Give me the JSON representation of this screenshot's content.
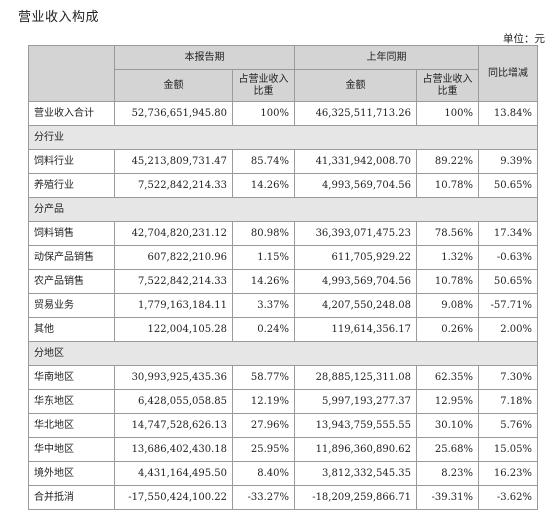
{
  "title": "营业收入构成",
  "unit": "单位：元",
  "header": {
    "current_period": "本报告期",
    "prior_period": "上年同期",
    "yoy_change": "同比增减",
    "amount": "金额",
    "share": "占营业收入比重"
  },
  "total": {
    "label": "营业收入合计",
    "current_amount": "52,736,651,945.80",
    "current_share": "100%",
    "prior_amount": "46,325,511,713.26",
    "prior_share": "100%",
    "change": "13.84%"
  },
  "sections": [
    {
      "title": "分行业",
      "rows": [
        {
          "label": "饲料行业",
          "current_amount": "45,213,809,731.47",
          "current_share": "85.74%",
          "prior_amount": "41,331,942,008.70",
          "prior_share": "89.22%",
          "change": "9.39%"
        },
        {
          "label": "养殖行业",
          "current_amount": "7,522,842,214.33",
          "current_share": "14.26%",
          "prior_amount": "4,993,569,704.56",
          "prior_share": "10.78%",
          "change": "50.65%"
        }
      ]
    },
    {
      "title": "分产品",
      "rows": [
        {
          "label": "饲料销售",
          "current_amount": "42,704,820,231.12",
          "current_share": "80.98%",
          "prior_amount": "36,393,071,475.23",
          "prior_share": "78.56%",
          "change": "17.34%"
        },
        {
          "label": "动保产品销售",
          "current_amount": "607,822,210.96",
          "current_share": "1.15%",
          "prior_amount": "611,705,929.22",
          "prior_share": "1.32%",
          "change": "-0.63%"
        },
        {
          "label": "农产品销售",
          "current_amount": "7,522,842,214.33",
          "current_share": "14.26%",
          "prior_amount": "4,993,569,704.56",
          "prior_share": "10.78%",
          "change": "50.65%"
        },
        {
          "label": "贸易业务",
          "current_amount": "1,779,163,184.11",
          "current_share": "3.37%",
          "prior_amount": "4,207,550,248.08",
          "prior_share": "9.08%",
          "change": "-57.71%"
        },
        {
          "label": "其他",
          "current_amount": "122,004,105.28",
          "current_share": "0.24%",
          "prior_amount": "119,614,356.17",
          "prior_share": "0.26%",
          "change": "2.00%"
        }
      ]
    },
    {
      "title": "分地区",
      "rows": [
        {
          "label": "华南地区",
          "current_amount": "30,993,925,435.36",
          "current_share": "58.77%",
          "prior_amount": "28,885,125,311.08",
          "prior_share": "62.35%",
          "change": "7.30%"
        },
        {
          "label": "华东地区",
          "current_amount": "6,428,055,058.85",
          "current_share": "12.19%",
          "prior_amount": "5,997,193,277.37",
          "prior_share": "12.95%",
          "change": "7.18%"
        },
        {
          "label": "华北地区",
          "current_amount": "14,747,528,626.13",
          "current_share": "27.96%",
          "prior_amount": "13,943,759,555.55",
          "prior_share": "30.10%",
          "change": "5.76%"
        },
        {
          "label": "华中地区",
          "current_amount": "13,686,402,430.18",
          "current_share": "25.95%",
          "prior_amount": "11,896,360,890.62",
          "prior_share": "25.68%",
          "change": "15.05%"
        },
        {
          "label": "境外地区",
          "current_amount": "4,431,164,495.50",
          "current_share": "8.40%",
          "prior_amount": "3,812,332,545.35",
          "prior_share": "8.23%",
          "change": "16.23%"
        },
        {
          "label": "合并抵消",
          "current_amount": "-17,550,424,100.22",
          "current_share": "-33.27%",
          "prior_amount": "-18,209,259,866.71",
          "prior_share": "-39.31%",
          "change": "-3.62%"
        }
      ]
    }
  ]
}
